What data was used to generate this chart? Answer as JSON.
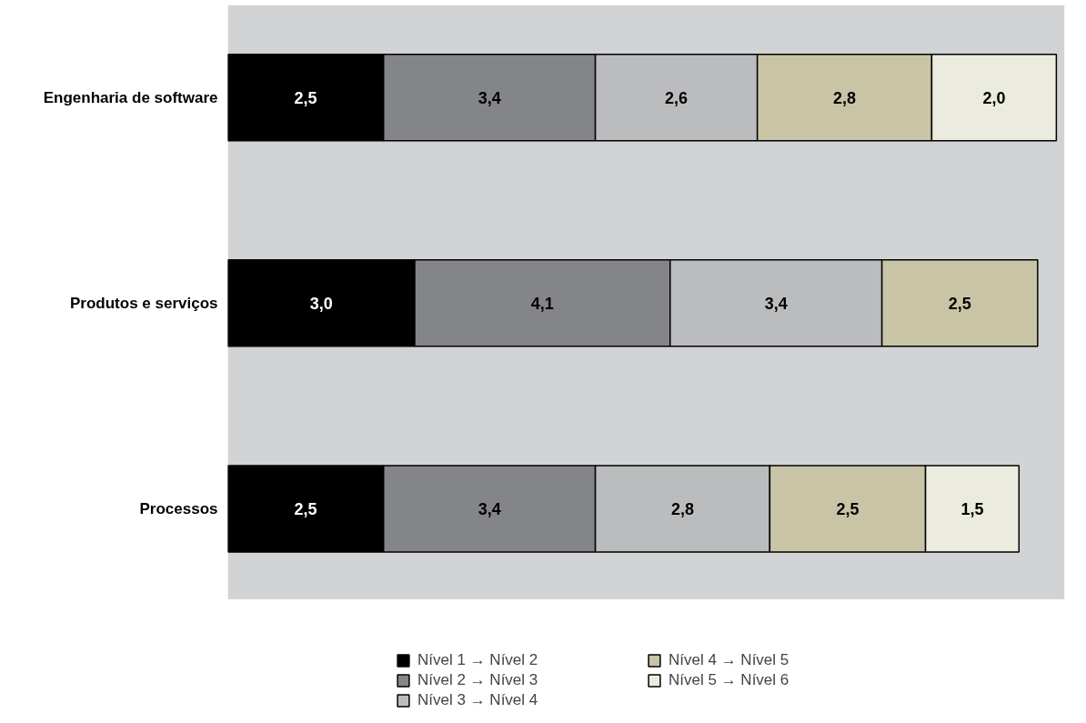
{
  "chart_data": {
    "type": "bar",
    "orientation": "horizontal",
    "stacked": true,
    "legend": "bottom",
    "categories": [
      "Engenharia de software",
      "Produtos e serviços",
      "Processos"
    ],
    "series": [
      {
        "name": "Nível 1 → Nível 2",
        "color": "#000000",
        "values": [
          2.5,
          3.0,
          2.5
        ],
        "value_labels": [
          "2,5",
          "3,0",
          "2,5"
        ]
      },
      {
        "name": "Nível 2 → Nível 3",
        "color": "#848589",
        "values": [
          3.4,
          4.1,
          3.4
        ],
        "value_labels": [
          "3,4",
          "4,1",
          "3,4"
        ]
      },
      {
        "name": "Nível 3 → Nível 4",
        "color": "#bbbcbe",
        "values": [
          2.6,
          3.4,
          2.8
        ],
        "value_labels": [
          "2,6",
          "3,4",
          "2,8"
        ]
      },
      {
        "name": "Nível 4 → Nível 5",
        "color": "#c9c4a6",
        "values": [
          2.8,
          2.5,
          2.5
        ],
        "value_labels": [
          "2,8",
          "2,5",
          "2,5"
        ]
      },
      {
        "name": "Nível 5 → Nível 6",
        "color": "#ecebe0",
        "values": [
          2.0,
          null,
          1.5
        ],
        "value_labels": [
          "2,0",
          null,
          "1,5"
        ]
      }
    ]
  }
}
